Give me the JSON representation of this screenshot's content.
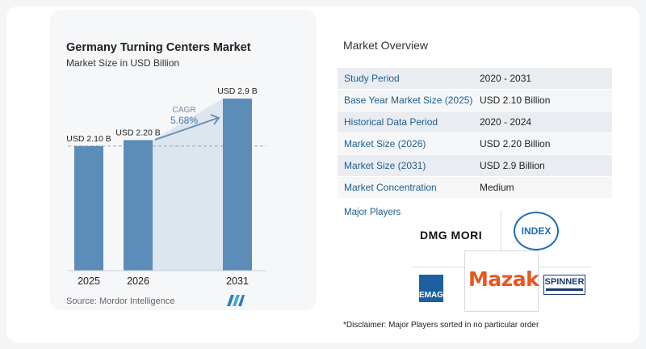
{
  "chart_data": {
    "type": "bar",
    "title": "Germany Turning Centers Market",
    "subtitle": "Market Size in USD Billion",
    "categories": [
      "2025",
      "2026",
      "2031"
    ],
    "values": [
      2.1,
      2.2,
      2.9
    ],
    "data_labels": [
      "USD 2.10 B",
      "USD 2.20 B",
      "USD 2.9 B"
    ],
    "ylim": [
      0,
      3.2
    ],
    "cagr_label": "CAGR",
    "cagr_value": "5.68%",
    "bar_color": "#5b8db8",
    "area_color": "#dde5ee",
    "grid": false,
    "legend": "none"
  },
  "source": "Source:  Mordor Intelligence",
  "overview": {
    "title": "Market Overview",
    "rows": [
      {
        "key": "Study Period",
        "value": "2020 - 2031"
      },
      {
        "key": "Base Year Market Size (2025)",
        "value": "USD 2.10 Billion"
      },
      {
        "key": "Historical Data Period",
        "value": "2020 - 2024"
      },
      {
        "key": "Market Size (2026)",
        "value": "USD 2.20 Billion"
      },
      {
        "key": "Market Size (2031)",
        "value": "USD 2.9 Billion"
      },
      {
        "key": "Market Concentration",
        "value": "Medium"
      }
    ]
  },
  "players": {
    "title": "Major Players",
    "logos": [
      "DMG MORI",
      "INDEX",
      "EMAG",
      "Mazak",
      "SPINNER"
    ]
  },
  "disclaimer": "*Disclaimer: Major Players sorted in no particular order",
  "icons": {
    "source_logo": "mordor-intelligence-logo-icon"
  }
}
